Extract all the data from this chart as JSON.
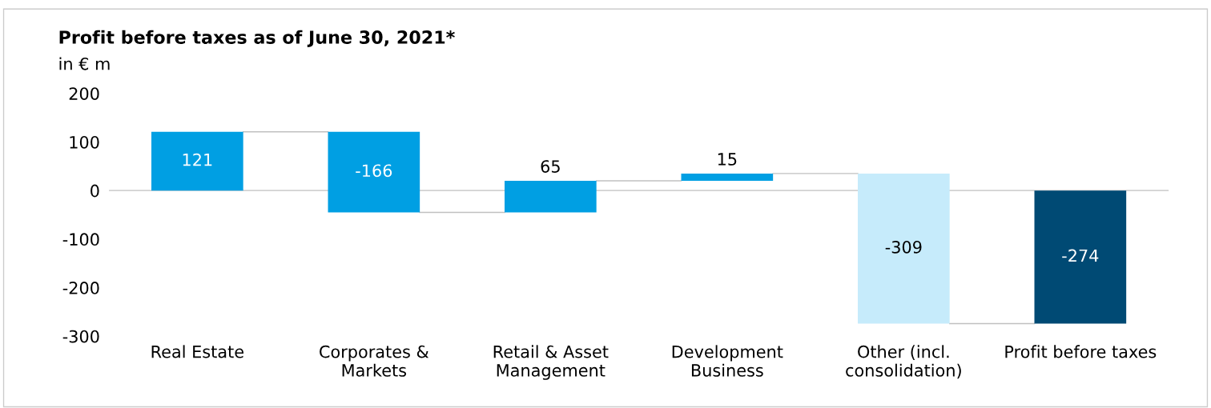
{
  "chart_data": {
    "type": "bar",
    "title": "Profit before taxes as of June 30, 2021*",
    "subtitle": "in € m",
    "categories": [
      "Real Estate",
      "Corporates &\nMarkets",
      "Retail & Asset\nManagement",
      "Development\nBusiness",
      "Other (incl.\nconsolidation)",
      "Profit before taxes"
    ],
    "values": [
      121,
      -166,
      65,
      15,
      -309,
      -274
    ],
    "base": [
      0,
      121,
      -45,
      20,
      35,
      0
    ],
    "colors": [
      "#009fe3",
      "#009fe3",
      "#009fe3",
      "#009fe3",
      "#c6ebfb",
      "#004a74"
    ],
    "ylim": [
      -300,
      200
    ],
    "yticks": [
      -300,
      -200,
      -100,
      0,
      100,
      200
    ],
    "ref_lines": [
      {
        "axis": "y",
        "value": 0,
        "color": "#c0c0c0"
      }
    ],
    "data_labels": true,
    "grid": false
  }
}
